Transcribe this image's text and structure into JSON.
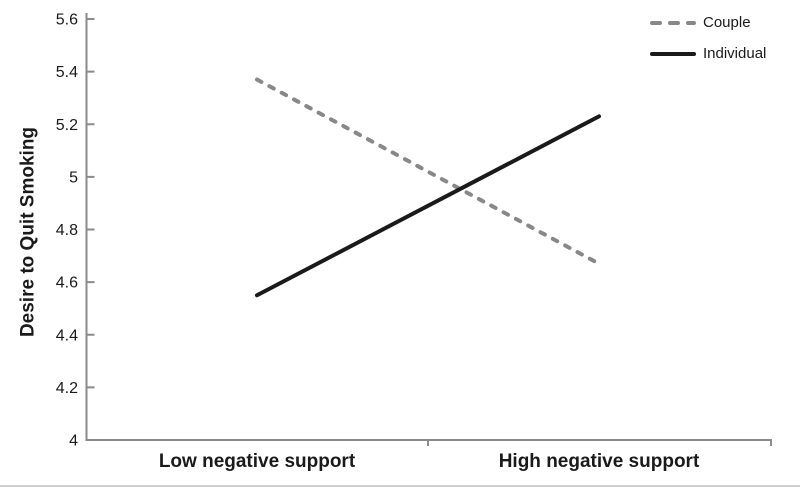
{
  "figure": {
    "background_color": "#ffffff",
    "bottom_edge_color": "#cfcfcf"
  },
  "chart_data": {
    "type": "line",
    "title": "",
    "xlabel": "",
    "ylabel": "Desire to Quit Smoking",
    "categories": [
      "Low negative support",
      "High negative support"
    ],
    "series": [
      {
        "name": "Couple",
        "values": [
          5.37,
          4.67
        ],
        "color": "#888888",
        "style": "dashed"
      },
      {
        "name": "Individual",
        "values": [
          4.55,
          5.23
        ],
        "color": "#1a1a1a",
        "style": "solid"
      }
    ],
    "ylim": [
      4,
      5.6
    ],
    "yticks": [
      4,
      4.2,
      4.4,
      4.6,
      4.8,
      5,
      5.2,
      5.4,
      5.6
    ],
    "ytick_labels": [
      "4",
      "4.2",
      "4.4",
      "4.6",
      "4.8",
      "5",
      "5.2",
      "5.4",
      "5.6"
    ],
    "grid": false,
    "legend_position": "top-right",
    "axis_color": "#8a8a8a",
    "text_color": "#1a1a1a"
  }
}
